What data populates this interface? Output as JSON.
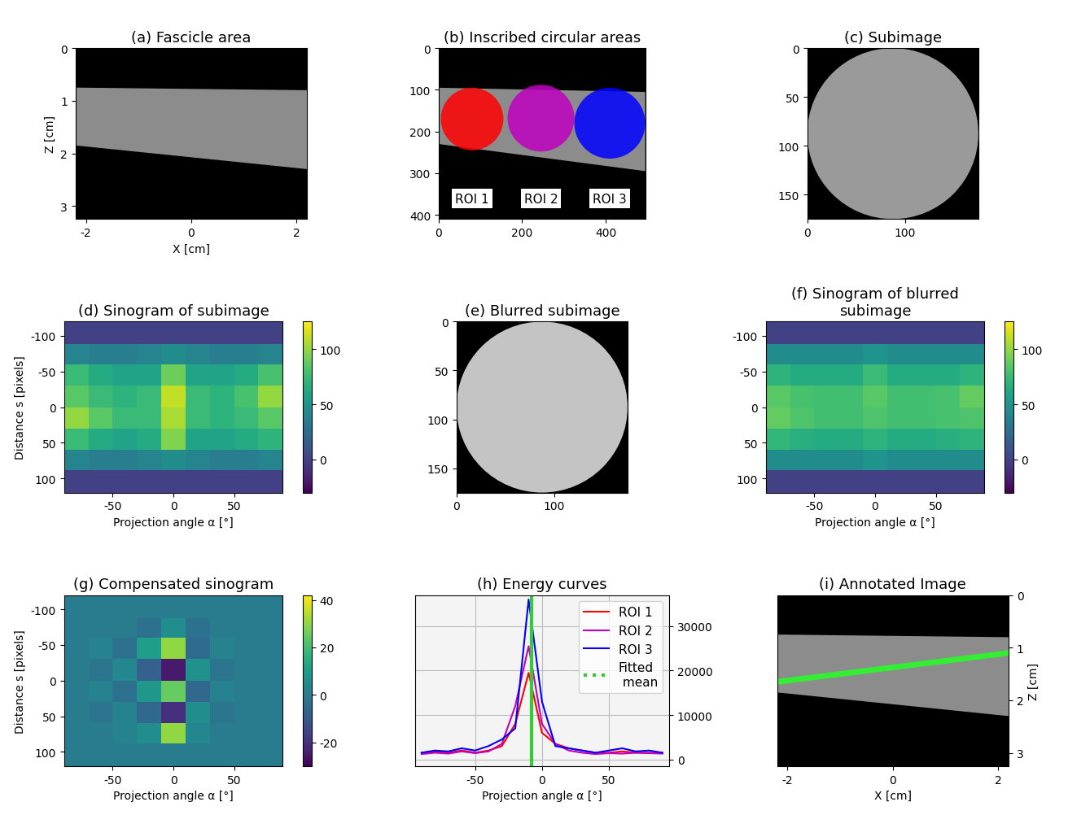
{
  "chart_data": [
    {
      "type": "image",
      "title": "(a) Fascicle area",
      "x_label": "X [cm]",
      "y_label": "Z [cm]",
      "xlim": [
        -2.2,
        2.2
      ],
      "ylim": [
        3.25,
        0
      ],
      "xticks": [
        -2,
        0,
        2
      ],
      "yticks": [
        0,
        1,
        2,
        3
      ],
      "region": {
        "x": [
          -2.2,
          2.2,
          2.2,
          -2.2
        ],
        "y": [
          0.75,
          0.8,
          2.3,
          1.85
        ]
      }
    },
    {
      "type": "image",
      "title": "(b) Inscribed circular areas",
      "xlim": [
        0,
        495
      ],
      "ylim": [
        410,
        0
      ],
      "xticks": [
        0,
        200,
        400
      ],
      "yticks": [
        0,
        100,
        200,
        300,
        400
      ],
      "region": {
        "x": [
          0,
          495,
          495,
          0
        ],
        "y": [
          95,
          105,
          295,
          230
        ]
      },
      "circles": [
        {
          "name": "ROI 1",
          "color": "#ff0000",
          "x": 80,
          "y": 170,
          "r": 75
        },
        {
          "name": "ROI 2",
          "color": "#c000c0",
          "x": 245,
          "y": 168,
          "r": 80
        },
        {
          "name": "ROI 3",
          "color": "#0000ff",
          "x": 410,
          "y": 180,
          "r": 85
        }
      ]
    },
    {
      "type": "image",
      "title": "(c) Subimage",
      "xlim": [
        0,
        175
      ],
      "ylim": [
        175,
        0
      ],
      "xticks": [
        0,
        100
      ],
      "yticks": [
        0,
        50,
        100,
        150
      ],
      "circles": [
        {
          "color": "#9a9a9a",
          "x": 87.5,
          "y": 87.5,
          "r": 87.5
        }
      ]
    },
    {
      "type": "heatmap",
      "title": "(d) Sinogram of subimage",
      "x_label": "Projection angle α [°]",
      "y_label": "Distance s [pixels]",
      "xlim": [
        -90,
        90
      ],
      "ylim": [
        120,
        -120
      ],
      "xticks": [
        -50,
        0,
        50
      ],
      "yticks": [
        -100,
        -50,
        0,
        50,
        100
      ],
      "x_edges": [
        -90,
        -70,
        -50,
        -30,
        -10,
        10,
        30,
        50,
        70,
        90
      ],
      "y_edges": [
        -120,
        -88,
        -60,
        -30,
        0,
        30,
        60,
        88,
        120
      ],
      "cells": [
        [
          0,
          0,
          0,
          0,
          0,
          0,
          0,
          0,
          0
        ],
        [
          40,
          35,
          35,
          40,
          45,
          40,
          35,
          35,
          40
        ],
        [
          75,
          65,
          60,
          60,
          90,
          60,
          60,
          65,
          80
        ],
        [
          85,
          75,
          70,
          75,
          110,
          75,
          70,
          80,
          100
        ],
        [
          100,
          85,
          75,
          75,
          105,
          75,
          70,
          75,
          85
        ],
        [
          75,
          65,
          60,
          65,
          95,
          60,
          60,
          65,
          70
        ],
        [
          40,
          35,
          35,
          40,
          45,
          40,
          35,
          35,
          40
        ],
        [
          0,
          0,
          0,
          0,
          0,
          0,
          0,
          0,
          0
        ]
      ],
      "colorbar": {
        "range": [
          -30,
          125
        ],
        "ticks": [
          0,
          50,
          100
        ]
      }
    },
    {
      "type": "image",
      "title": "(e) Blurred subimage",
      "xlim": [
        0,
        175
      ],
      "ylim": [
        175,
        0
      ],
      "xticks": [
        0,
        100
      ],
      "yticks": [
        0,
        50,
        100,
        150
      ],
      "circles": [
        {
          "color": "#c4c4c4",
          "x": 87.5,
          "y": 87.5,
          "r": 87.5
        }
      ]
    },
    {
      "type": "heatmap",
      "title": "(f) Sinogram of blurred\nsubimage",
      "x_label": "Projection angle α [°]",
      "xlim": [
        -90,
        90
      ],
      "ylim": [
        120,
        -120
      ],
      "xticks": [
        -50,
        0,
        50
      ],
      "yticks": [
        -100,
        -50,
        0,
        50,
        100
      ],
      "x_edges": [
        -90,
        -70,
        -50,
        -30,
        -10,
        10,
        30,
        50,
        70,
        90
      ],
      "y_edges": [
        -120,
        -88,
        -60,
        -30,
        0,
        30,
        60,
        88,
        120
      ],
      "cells": [
        [
          0,
          0,
          0,
          0,
          0,
          0,
          0,
          0,
          0
        ],
        [
          45,
          45,
          45,
          45,
          50,
          45,
          45,
          45,
          45
        ],
        [
          70,
          65,
          65,
          65,
          75,
          65,
          65,
          65,
          70
        ],
        [
          85,
          80,
          78,
          78,
          85,
          78,
          78,
          80,
          88
        ],
        [
          88,
          82,
          78,
          78,
          82,
          78,
          78,
          80,
          82
        ],
        [
          72,
          68,
          65,
          65,
          70,
          65,
          65,
          68,
          70
        ],
        [
          45,
          45,
          45,
          45,
          50,
          45,
          45,
          45,
          45
        ],
        [
          0,
          0,
          0,
          0,
          0,
          0,
          0,
          0,
          0
        ]
      ],
      "colorbar": {
        "range": [
          -30,
          125
        ],
        "ticks": [
          0,
          50,
          100
        ]
      }
    },
    {
      "type": "heatmap",
      "title": "(g) Compensated sinogram",
      "x_label": "Projection angle α [°]",
      "y_label": "Distance s [pixels]",
      "xlim": [
        -90,
        90
      ],
      "ylim": [
        120,
        -120
      ],
      "xticks": [
        -50,
        0,
        50
      ],
      "yticks": [
        -100,
        -50,
        0,
        50,
        100
      ],
      "x_edges": [
        -90,
        -70,
        -50,
        -30,
        -10,
        10,
        30,
        50,
        70,
        90
      ],
      "y_edges": [
        -120,
        -88,
        -60,
        -30,
        0,
        30,
        60,
        88,
        120
      ],
      "cells": [
        [
          0,
          0,
          0,
          0,
          0,
          0,
          0,
          0,
          0
        ],
        [
          0,
          0,
          0,
          -3,
          5,
          -3,
          0,
          0,
          0
        ],
        [
          0,
          2,
          -3,
          10,
          30,
          -5,
          2,
          0,
          0
        ],
        [
          0,
          -2,
          3,
          -8,
          -25,
          6,
          -2,
          0,
          0
        ],
        [
          0,
          2,
          -3,
          8,
          25,
          -6,
          2,
          0,
          0
        ],
        [
          0,
          -2,
          2,
          -6,
          -20,
          5,
          -2,
          0,
          0
        ],
        [
          0,
          0,
          2,
          5,
          30,
          3,
          0,
          0,
          0
        ],
        [
          0,
          0,
          0,
          0,
          0,
          0,
          0,
          0,
          0
        ]
      ],
      "colorbar": {
        "range": [
          -30,
          42
        ],
        "ticks": [
          -20,
          0,
          20,
          40
        ]
      }
    },
    {
      "type": "line",
      "title": "(h) Energy curves",
      "x_label": "Projection angle α [°]",
      "xlim": [
        -95,
        95
      ],
      "ylim": [
        -1500,
        37000
      ],
      "xticks": [
        -50,
        0,
        50
      ],
      "yticks": [
        0,
        10000,
        20000,
        30000
      ],
      "grid": true,
      "legend": "upper right",
      "x": [
        -90,
        -80,
        -70,
        -60,
        -50,
        -40,
        -30,
        -20,
        -10,
        0,
        10,
        20,
        30,
        40,
        50,
        60,
        70,
        80,
        90
      ],
      "series": [
        {
          "name": "ROI 1",
          "color": "#ff0000",
          "values": [
            1500,
            1800,
            1500,
            2000,
            1500,
            2000,
            3000,
            8000,
            19500,
            6000,
            3500,
            2500,
            2000,
            1500,
            1500,
            1800,
            1500,
            1500,
            1500
          ]
        },
        {
          "name": "ROI 2",
          "color": "#c000c0",
          "values": [
            1200,
            1500,
            1300,
            1800,
            1400,
            1800,
            3500,
            12000,
            25500,
            8000,
            3500,
            2000,
            1500,
            1200,
            1400,
            1300,
            1500,
            1400,
            1300
          ]
        },
        {
          "name": "ROI 3",
          "color": "#0000ff",
          "values": [
            1500,
            2000,
            1800,
            2500,
            2000,
            3000,
            4500,
            7000,
            36000,
            13000,
            3000,
            2500,
            2000,
            1500,
            2000,
            2500,
            1800,
            2000,
            1500
          ]
        }
      ],
      "fitted_mean": {
        "name": "Fitted\n mean",
        "color": "#33cc33",
        "x": -8,
        "line_style": "dotted"
      }
    },
    {
      "type": "image",
      "title": "(i) Annotated Image",
      "x_label": "X [cm]",
      "y_label": "Z [cm]",
      "xlim": [
        -2.2,
        2.2
      ],
      "ylim": [
        3.25,
        0
      ],
      "xticks": [
        -2,
        0,
        2
      ],
      "yticks": [
        0,
        1,
        2,
        3
      ],
      "region": {
        "x": [
          -2.2,
          2.2,
          2.2,
          -2.2
        ],
        "y": [
          0.75,
          0.8,
          2.3,
          1.85
        ]
      },
      "line": {
        "color": "#33ee33",
        "x": [
          -2.2,
          2.2
        ],
        "y": [
          1.65,
          1.1
        ]
      }
    }
  ]
}
